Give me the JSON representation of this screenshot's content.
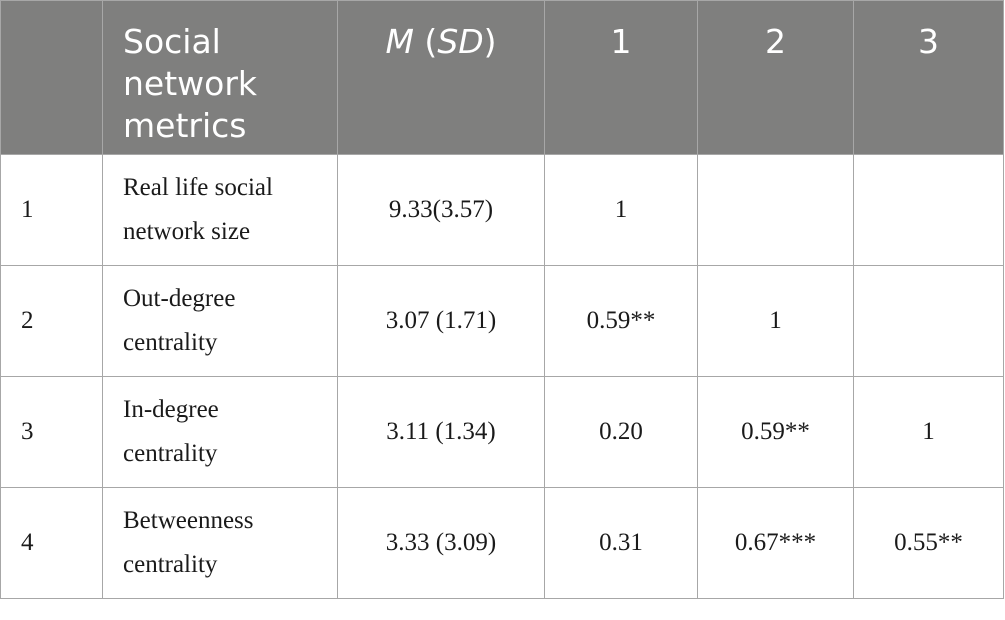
{
  "table": {
    "headers": {
      "index": "",
      "metric": "Social network metrics",
      "mean_sd_m": "M",
      "mean_sd_open": " (",
      "mean_sd_sd": "SD",
      "mean_sd_close": ")",
      "col1": "1",
      "col2": "2",
      "col3": "3"
    },
    "rows": [
      {
        "index": "1",
        "name": "Real life social network size",
        "mean_sd": "9.33(3.57)",
        "c1": "1",
        "c2": "",
        "c3": ""
      },
      {
        "index": "2",
        "name": "Out-degree centrality",
        "mean_sd": "3.07 (1.71)",
        "c1": "0.59**",
        "c2": "1",
        "c3": ""
      },
      {
        "index": "3",
        "name": "In-degree centrality",
        "mean_sd": "3.11 (1.34)",
        "c1": "0.20",
        "c2": "0.59**",
        "c3": "1"
      },
      {
        "index": "4",
        "name": "Betweenness centrality",
        "mean_sd": "3.33 (3.09)",
        "c1": "0.31",
        "c2": "0.67***",
        "c3": "0.55**"
      }
    ]
  },
  "colors": {
    "header_background": "#7f7f7e",
    "header_text": "#ffffff",
    "border": "#a7a7a7",
    "body_text": "#1a1a1a"
  }
}
